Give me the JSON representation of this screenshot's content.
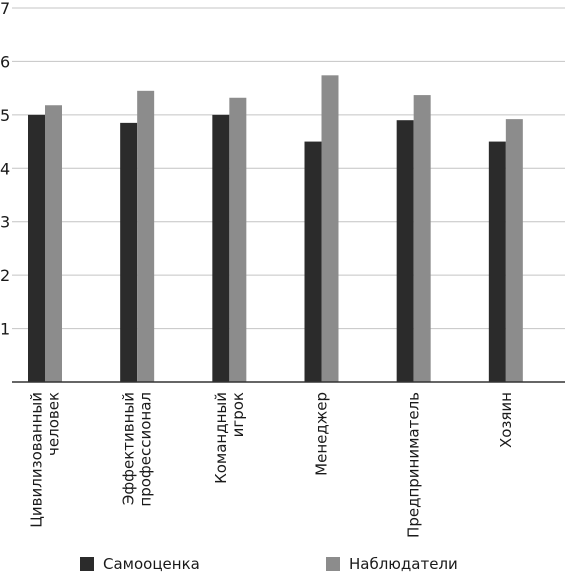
{
  "chart_data": {
    "type": "bar",
    "categories": [
      [
        "Цивилизованный",
        "человек"
      ],
      [
        "Эффективный",
        "профессионал"
      ],
      [
        "Командный",
        "игрок"
      ],
      [
        "Менеджер"
      ],
      [
        "Предприниматель"
      ],
      [
        "Хозяин"
      ]
    ],
    "series": [
      {
        "name": "Самооценка",
        "values": [
          5.0,
          4.85,
          5.0,
          4.5,
          4.9,
          4.5
        ],
        "color": "#2b2b2b"
      },
      {
        "name": "Наблюдатели",
        "values": [
          5.18,
          5.45,
          5.32,
          5.74,
          5.37,
          4.92
        ],
        "color": "#8c8c8c"
      }
    ],
    "ylim": [
      0,
      7
    ],
    "yticks": [
      1,
      2,
      3,
      4,
      5,
      6,
      7
    ],
    "grid": true,
    "legend_position": "bottom",
    "title": "",
    "xlabel": "",
    "ylabel": ""
  }
}
